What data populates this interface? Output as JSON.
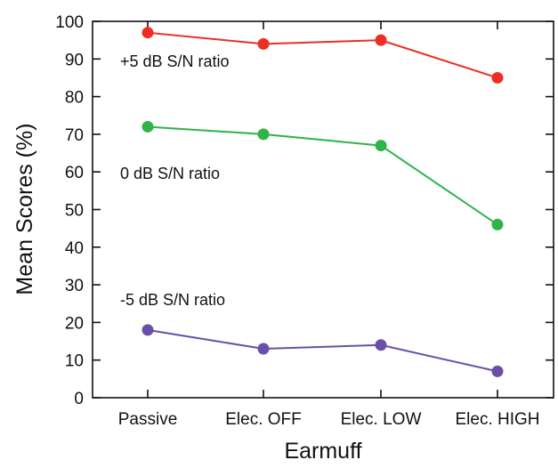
{
  "chart_data": {
    "type": "line",
    "xlabel": "Earmuff",
    "ylabel": "Mean Scores (%)",
    "categories": [
      "Passive",
      "Elec. OFF",
      "Elec. LOW",
      "Elec. HIGH"
    ],
    "ylim": [
      0,
      100
    ],
    "yticks": [
      0,
      10,
      20,
      30,
      40,
      50,
      60,
      70,
      80,
      90,
      100
    ],
    "grid": false,
    "series": [
      {
        "name": "+5 dB S/N ratio",
        "color": "#ee2d24",
        "values": [
          97,
          94,
          95,
          85
        ]
      },
      {
        "name": "0 dB S/N ratio",
        "color": "#2fb34a",
        "values": [
          72,
          70,
          67,
          46
        ]
      },
      {
        "name": "-5 dB S/N ratio",
        "color": "#6a4fa8",
        "values": [
          18,
          13,
          14,
          7
        ]
      }
    ]
  }
}
